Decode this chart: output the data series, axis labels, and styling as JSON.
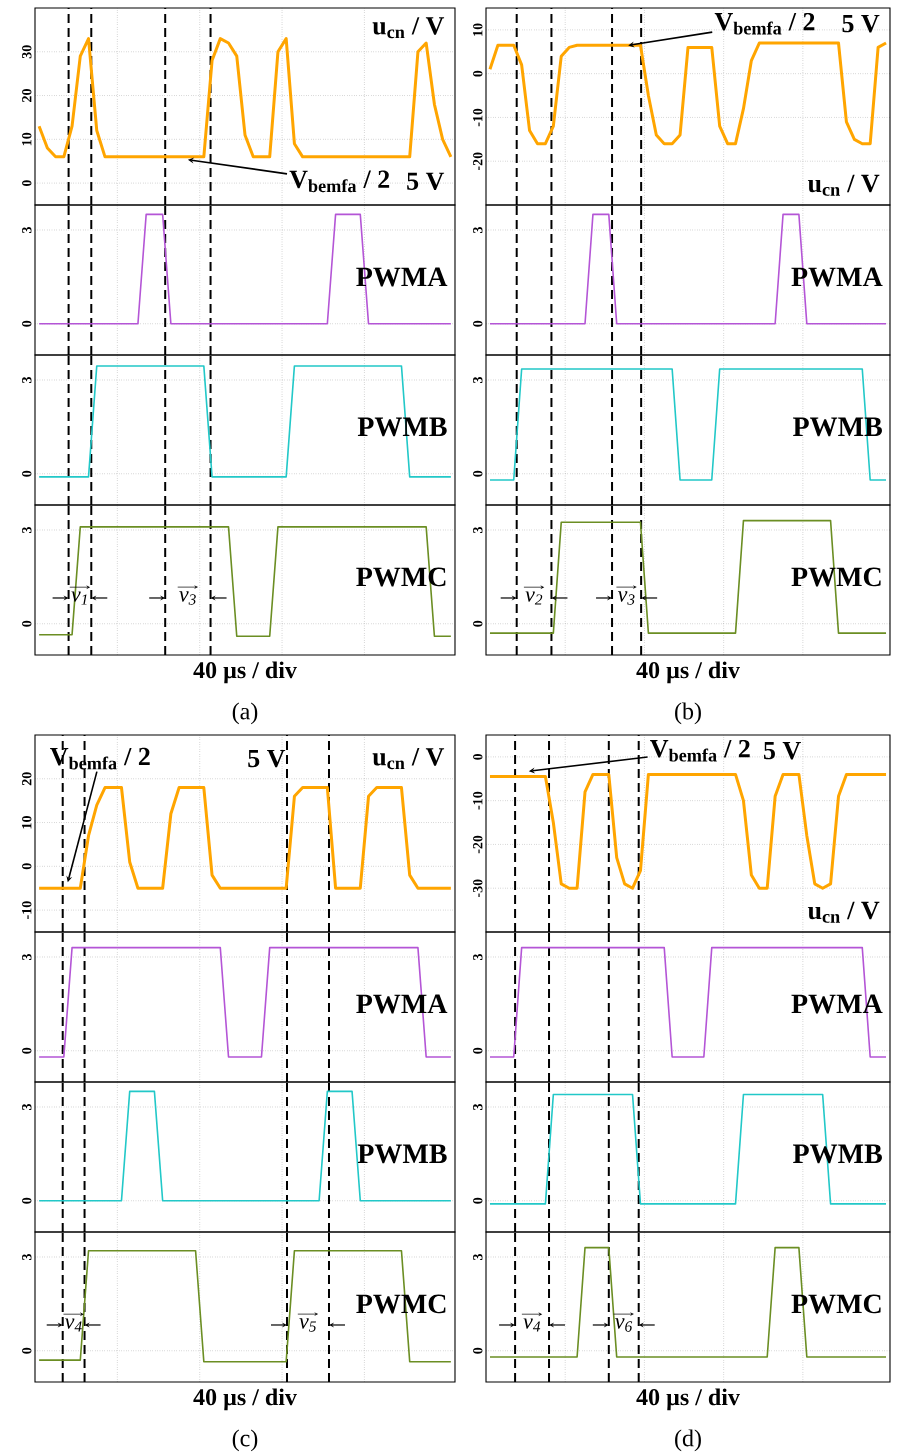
{
  "chart_data": [
    {
      "type": "line",
      "categories": [
        null,
        null,
        null,
        null,
        null,
        null,
        null,
        null,
        null,
        null,
        null,
        null,
        null,
        null,
        null,
        null,
        null,
        null,
        null,
        null,
        null,
        null,
        null,
        null,
        null,
        null,
        null,
        null,
        null,
        null,
        null,
        null,
        null,
        null,
        null,
        null,
        null,
        null,
        null,
        null,
        null,
        null,
        null,
        null,
        null,
        null,
        null,
        null,
        null,
        null,
        null
      ],
      "ylim": [
        -5,
        40
      ],
      "yticks": [
        0,
        10,
        20,
        30
      ],
      "grid": true,
      "tick_labels": "y",
      "series": [
        {
          "color": "#ffa500",
          "values": [
            13,
            8,
            6,
            6,
            13,
            29,
            33,
            12,
            6,
            6,
            6,
            6,
            6,
            6,
            6,
            6,
            6,
            6,
            6,
            6,
            6,
            28,
            33,
            32,
            29,
            11,
            6,
            6,
            6,
            30,
            33,
            9,
            6,
            6,
            6,
            6,
            6,
            6,
            6,
            6,
            6,
            6,
            6,
            6,
            6,
            6,
            30,
            32,
            18,
            10,
            6
          ]
        }
      ],
      "annotations": [
        "u$_{cn}$ / V",
        "V$_{bemfa}$ / 2",
        "5 V"
      ]
    },
    {
      "type": "line",
      "categories": [
        null,
        null,
        null,
        null,
        null,
        null,
        null,
        null,
        null,
        null,
        null,
        null,
        null,
        null,
        null,
        null,
        null,
        null,
        null,
        null,
        null,
        null,
        null,
        null,
        null,
        null,
        null,
        null,
        null,
        null,
        null,
        null,
        null,
        null,
        null,
        null,
        null,
        null,
        null,
        null,
        null,
        null,
        null,
        null,
        null,
        null,
        null,
        null,
        null,
        null,
        null
      ],
      "ylim": [
        -1,
        3.8
      ],
      "yticks": [
        0,
        3
      ],
      "grid": true,
      "tick_labels": "y",
      "series": [
        {
          "name": "PWMA",
          "color": "#b455d6",
          "values": [
            0,
            0,
            0,
            0,
            0,
            0,
            0,
            0,
            0,
            0,
            0,
            0,
            0,
            3.5,
            3.5,
            3.5,
            0,
            0,
            0,
            0,
            0,
            0,
            0,
            0,
            0,
            0,
            0,
            0,
            0,
            0,
            0,
            0,
            0,
            0,
            0,
            0,
            3.5,
            3.5,
            3.5,
            3.5,
            0,
            0,
            0,
            0,
            0,
            0,
            0,
            0,
            0,
            0,
            0
          ]
        }
      ]
    },
    {
      "type": "line",
      "categories": [
        null,
        null,
        null,
        null,
        null,
        null,
        null,
        null,
        null,
        null,
        null,
        null,
        null,
        null,
        null,
        null,
        null,
        null,
        null,
        null,
        null,
        null,
        null,
        null,
        null,
        null,
        null,
        null,
        null,
        null,
        null,
        null,
        null,
        null,
        null,
        null,
        null,
        null,
        null,
        null,
        null,
        null,
        null,
        null,
        null,
        null,
        null,
        null,
        null,
        null,
        null
      ],
      "ylim": [
        -1,
        3.8
      ],
      "yticks": [
        0,
        3
      ],
      "grid": true,
      "tick_labels": "y",
      "series": [
        {
          "name": "PWMB",
          "color": "#22c8c8",
          "values": [
            -0.1,
            -0.1,
            -0.1,
            -0.1,
            -0.1,
            -0.1,
            -0.1,
            3.45,
            3.45,
            3.45,
            3.45,
            3.45,
            3.45,
            3.45,
            3.45,
            3.45,
            3.45,
            3.45,
            3.45,
            3.45,
            3.45,
            -0.1,
            -0.1,
            -0.1,
            -0.1,
            -0.1,
            -0.1,
            -0.1,
            -0.1,
            -0.1,
            -0.1,
            3.45,
            3.45,
            3.45,
            3.45,
            3.45,
            3.45,
            3.45,
            3.45,
            3.45,
            3.45,
            3.45,
            3.45,
            3.45,
            3.45,
            -0.1,
            -0.1,
            -0.1,
            -0.1,
            -0.1,
            -0.1
          ]
        }
      ]
    },
    {
      "type": "line",
      "categories": [
        null,
        null,
        null,
        null,
        null,
        null,
        null,
        null,
        null,
        null,
        null,
        null,
        null,
        null,
        null,
        null,
        null,
        null,
        null,
        null,
        null,
        null,
        null,
        null,
        null,
        null,
        null,
        null,
        null,
        null,
        null,
        null,
        null,
        null,
        null,
        null,
        null,
        null,
        null,
        null,
        null,
        null,
        null,
        null,
        null,
        null,
        null,
        null,
        null,
        null,
        null
      ],
      "ylim": [
        -1,
        3.8
      ],
      "yticks": [
        0,
        3
      ],
      "grid": true,
      "tick_labels": "y",
      "xlabel": "40 µs / div",
      "series": [
        {
          "name": "PWMC",
          "color": "#6b8e23",
          "values": [
            -0.35,
            -0.35,
            -0.35,
            -0.35,
            -0.35,
            3.1,
            3.1,
            3.1,
            3.1,
            3.1,
            3.1,
            3.1,
            3.1,
            3.1,
            3.1,
            3.1,
            3.1,
            3.1,
            3.1,
            3.1,
            3.1,
            3.1,
            3.1,
            3.1,
            -0.4,
            -0.4,
            -0.4,
            -0.4,
            -0.4,
            3.1,
            3.1,
            3.1,
            3.1,
            3.1,
            3.1,
            3.1,
            3.1,
            3.1,
            3.1,
            3.1,
            3.1,
            3.1,
            3.1,
            3.1,
            3.1,
            3.1,
            3.1,
            3.1,
            -0.4,
            -0.4,
            -0.4
          ]
        }
      ],
      "annotations": [
        "v$_{1}$",
        "v$_{3}$",
        "(a)"
      ]
    },
    {
      "type": "line",
      "categories": [
        null,
        null,
        null,
        null,
        null,
        null,
        null,
        null,
        null,
        null,
        null,
        null,
        null,
        null,
        null,
        null,
        null,
        null,
        null,
        null,
        null,
        null,
        null,
        null,
        null,
        null,
        null,
        null,
        null,
        null,
        null,
        null,
        null,
        null,
        null,
        null,
        null,
        null,
        null,
        null,
        null,
        null,
        null,
        null,
        null,
        null,
        null,
        null,
        null,
        null,
        null
      ],
      "ylim": [
        -30,
        15
      ],
      "yticks": [
        -20,
        -10,
        0,
        10
      ],
      "grid": true,
      "tick_labels": "y",
      "series": [
        {
          "color": "#ffa500",
          "values": [
            1,
            6.5,
            6.5,
            6.5,
            2,
            -13,
            -16,
            -16,
            -12,
            4,
            6,
            6.5,
            6.5,
            6.5,
            6.5,
            6.5,
            6.5,
            6.5,
            6.5,
            6.5,
            -5,
            -14,
            -16,
            -16,
            -14,
            6,
            6,
            6,
            6,
            -12,
            -16,
            -16,
            -8,
            3,
            7,
            7,
            7,
            7,
            7,
            7,
            7,
            7,
            7,
            7,
            7,
            -11,
            -15,
            -16,
            -16,
            6,
            7
          ]
        }
      ],
      "annotations": [
        "u$_{cn}$ / V",
        "V$_{bemfa}$ / 2",
        "5 V"
      ]
    },
    {
      "type": "line",
      "categories": [
        null,
        null,
        null,
        null,
        null,
        null,
        null,
        null,
        null,
        null,
        null,
        null,
        null,
        null,
        null,
        null,
        null,
        null,
        null,
        null,
        null,
        null,
        null,
        null,
        null,
        null,
        null,
        null,
        null,
        null,
        null,
        null,
        null,
        null,
        null,
        null,
        null,
        null,
        null,
        null,
        null,
        null,
        null,
        null,
        null,
        null,
        null,
        null,
        null,
        null,
        null
      ],
      "ylim": [
        -1,
        3.8
      ],
      "yticks": [
        0,
        3
      ],
      "grid": true,
      "tick_labels": "y",
      "series": [
        {
          "name": "PWMA",
          "color": "#b455d6",
          "values": [
            0,
            0,
            0,
            0,
            0,
            0,
            0,
            0,
            0,
            0,
            0,
            0,
            0,
            3.5,
            3.5,
            3.5,
            0,
            0,
            0,
            0,
            0,
            0,
            0,
            0,
            0,
            0,
            0,
            0,
            0,
            0,
            0,
            0,
            0,
            0,
            0,
            0,
            0,
            3.5,
            3.5,
            3.5,
            0,
            0,
            0,
            0,
            0,
            0,
            0,
            0,
            0,
            0,
            0
          ]
        }
      ]
    },
    {
      "type": "line",
      "categories": [
        null,
        null,
        null,
        null,
        null,
        null,
        null,
        null,
        null,
        null,
        null,
        null,
        null,
        null,
        null,
        null,
        null,
        null,
        null,
        null,
        null,
        null,
        null,
        null,
        null,
        null,
        null,
        null,
        null,
        null,
        null,
        null,
        null,
        null,
        null,
        null,
        null,
        null,
        null,
        null,
        null,
        null,
        null,
        null,
        null,
        null,
        null,
        null,
        null,
        null,
        null
      ],
      "ylim": [
        -1,
        3.8
      ],
      "yticks": [
        0,
        3
      ],
      "grid": true,
      "tick_labels": "y",
      "series": [
        {
          "name": "PWMB",
          "color": "#22c8c8",
          "values": [
            -0.2,
            -0.2,
            -0.2,
            -0.2,
            3.35,
            3.35,
            3.35,
            3.35,
            3.35,
            3.35,
            3.35,
            3.35,
            3.35,
            3.35,
            3.35,
            3.35,
            3.35,
            3.35,
            3.35,
            3.35,
            3.35,
            3.35,
            3.35,
            3.35,
            -0.2,
            -0.2,
            -0.2,
            -0.2,
            -0.2,
            3.35,
            3.35,
            3.35,
            3.35,
            3.35,
            3.35,
            3.35,
            3.35,
            3.35,
            3.35,
            3.35,
            3.35,
            3.35,
            3.35,
            3.35,
            3.35,
            3.35,
            3.35,
            3.35,
            -0.2,
            -0.2,
            -0.2
          ]
        }
      ]
    },
    {
      "type": "line",
      "categories": [
        null,
        null,
        null,
        null,
        null,
        null,
        null,
        null,
        null,
        null,
        null,
        null,
        null,
        null,
        null,
        null,
        null,
        null,
        null,
        null,
        null,
        null,
        null,
        null,
        null,
        null,
        null,
        null,
        null,
        null,
        null,
        null,
        null,
        null,
        null,
        null,
        null,
        null,
        null,
        null,
        null,
        null,
        null,
        null,
        null,
        null,
        null,
        null,
        null,
        null,
        null
      ],
      "ylim": [
        -1,
        3.8
      ],
      "yticks": [
        0,
        3
      ],
      "grid": true,
      "tick_labels": "y",
      "xlabel": "40 µs / div",
      "series": [
        {
          "name": "PWMC",
          "color": "#6b8e23",
          "values": [
            -0.3,
            -0.3,
            -0.3,
            -0.3,
            -0.3,
            -0.3,
            -0.3,
            -0.3,
            -0.3,
            3.25,
            3.25,
            3.25,
            3.25,
            3.25,
            3.25,
            3.25,
            3.25,
            3.25,
            3.25,
            3.25,
            -0.3,
            -0.3,
            -0.3,
            -0.3,
            -0.3,
            -0.3,
            -0.3,
            -0.3,
            -0.3,
            -0.3,
            -0.3,
            -0.3,
            3.3,
            3.3,
            3.3,
            3.3,
            3.3,
            3.3,
            3.3,
            3.3,
            3.3,
            3.3,
            3.3,
            3.3,
            -0.3,
            -0.3,
            -0.3,
            -0.3,
            -0.3,
            -0.3,
            -0.3
          ]
        }
      ],
      "annotations": [
        "v$_{2}$",
        "v$_{3}$",
        "(b)"
      ]
    },
    {
      "type": "line",
      "categories": [
        null,
        null,
        null,
        null,
        null,
        null,
        null,
        null,
        null,
        null,
        null,
        null,
        null,
        null,
        null,
        null,
        null,
        null,
        null,
        null,
        null,
        null,
        null,
        null,
        null,
        null,
        null,
        null,
        null,
        null,
        null,
        null,
        null,
        null,
        null,
        null,
        null,
        null,
        null,
        null,
        null,
        null,
        null,
        null,
        null,
        null,
        null,
        null,
        null,
        null,
        null
      ],
      "ylim": [
        -15,
        30
      ],
      "yticks": [
        -10,
        0,
        10,
        20
      ],
      "grid": true,
      "tick_labels": "y",
      "series": [
        {
          "color": "#ffa500",
          "values": [
            -5,
            -5,
            -5,
            -5,
            -5,
            -5,
            7,
            14,
            18,
            18,
            18,
            1,
            -5,
            -5,
            -5,
            -5,
            12,
            18,
            18,
            18,
            18,
            -2,
            -5,
            -5,
            -5,
            -5,
            -5,
            -5,
            -5,
            -5,
            -5,
            16,
            18,
            18,
            18,
            18,
            -5,
            -5,
            -5,
            -5,
            16,
            18,
            18,
            18,
            18,
            -2,
            -5,
            -5,
            -5,
            -5,
            -5
          ]
        }
      ],
      "annotations": [
        "u$_{cn}$ / V",
        "V$_{bemfa}$ / 2",
        "5 V"
      ]
    },
    {
      "type": "line",
      "categories": [
        null,
        null,
        null,
        null,
        null,
        null,
        null,
        null,
        null,
        null,
        null,
        null,
        null,
        null,
        null,
        null,
        null,
        null,
        null,
        null,
        null,
        null,
        null,
        null,
        null,
        null,
        null,
        null,
        null,
        null,
        null,
        null,
        null,
        null,
        null,
        null,
        null,
        null,
        null,
        null,
        null,
        null,
        null,
        null,
        null,
        null,
        null,
        null,
        null,
        null,
        null
      ],
      "ylim": [
        -1,
        3.8
      ],
      "yticks": [
        0,
        3
      ],
      "grid": true,
      "tick_labels": "y",
      "series": [
        {
          "name": "PWMA",
          "color": "#b455d6",
          "values": [
            -0.2,
            -0.2,
            -0.2,
            -0.2,
            3.3,
            3.3,
            3.3,
            3.3,
            3.3,
            3.3,
            3.3,
            3.3,
            3.3,
            3.3,
            3.3,
            3.3,
            3.3,
            3.3,
            3.3,
            3.3,
            3.3,
            3.3,
            3.3,
            -0.2,
            -0.2,
            -0.2,
            -0.2,
            -0.2,
            3.3,
            3.3,
            3.3,
            3.3,
            3.3,
            3.3,
            3.3,
            3.3,
            3.3,
            3.3,
            3.3,
            3.3,
            3.3,
            3.3,
            3.3,
            3.3,
            3.3,
            3.3,
            3.3,
            -0.2,
            -0.2,
            -0.2,
            -0.2
          ]
        }
      ]
    },
    {
      "type": "line",
      "categories": [
        null,
        null,
        null,
        null,
        null,
        null,
        null,
        null,
        null,
        null,
        null,
        null,
        null,
        null,
        null,
        null,
        null,
        null,
        null,
        null,
        null,
        null,
        null,
        null,
        null,
        null,
        null,
        null,
        null,
        null,
        null,
        null,
        null,
        null,
        null,
        null,
        null,
        null,
        null,
        null,
        null,
        null,
        null,
        null,
        null,
        null,
        null,
        null,
        null,
        null,
        null
      ],
      "ylim": [
        -1,
        3.8
      ],
      "yticks": [
        0,
        3
      ],
      "grid": true,
      "tick_labels": "y",
      "series": [
        {
          "name": "PWMB",
          "color": "#22c8c8",
          "values": [
            0,
            0,
            0,
            0,
            0,
            0,
            0,
            0,
            0,
            0,
            0,
            3.5,
            3.5,
            3.5,
            3.5,
            0,
            0,
            0,
            0,
            0,
            0,
            0,
            0,
            0,
            0,
            0,
            0,
            0,
            0,
            0,
            0,
            0,
            0,
            0,
            0,
            3.5,
            3.5,
            3.5,
            3.5,
            0,
            0,
            0,
            0,
            0,
            0,
            0,
            0,
            0,
            0,
            0,
            0
          ]
        }
      ]
    },
    {
      "type": "line",
      "categories": [
        null,
        null,
        null,
        null,
        null,
        null,
        null,
        null,
        null,
        null,
        null,
        null,
        null,
        null,
        null,
        null,
        null,
        null,
        null,
        null,
        null,
        null,
        null,
        null,
        null,
        null,
        null,
        null,
        null,
        null,
        null,
        null,
        null,
        null,
        null,
        null,
        null,
        null,
        null,
        null,
        null,
        null,
        null,
        null,
        null,
        null,
        null,
        null,
        null,
        null,
        null
      ],
      "ylim": [
        -1,
        3.8
      ],
      "yticks": [
        0,
        3
      ],
      "grid": true,
      "tick_labels": "y",
      "xlabel": "40 µs / div",
      "series": [
        {
          "name": "PWMC",
          "color": "#6b8e23",
          "values": [
            -0.3,
            -0.3,
            -0.3,
            -0.3,
            -0.3,
            -0.3,
            3.2,
            3.2,
            3.2,
            3.2,
            3.2,
            3.2,
            3.2,
            3.2,
            3.2,
            3.2,
            3.2,
            3.2,
            3.2,
            3.2,
            -0.35,
            -0.35,
            -0.35,
            -0.35,
            -0.35,
            -0.35,
            -0.35,
            -0.35,
            -0.35,
            -0.35,
            -0.35,
            3.2,
            3.2,
            3.2,
            3.2,
            3.2,
            3.2,
            3.2,
            3.2,
            3.2,
            3.2,
            3.2,
            3.2,
            3.2,
            3.2,
            -0.35,
            -0.35,
            -0.35,
            -0.35,
            -0.35,
            -0.35
          ]
        }
      ],
      "annotations": [
        "v$_{4}$",
        "v$_{5}$",
        "(c)"
      ]
    },
    {
      "type": "line",
      "categories": [
        null,
        null,
        null,
        null,
        null,
        null,
        null,
        null,
        null,
        null,
        null,
        null,
        null,
        null,
        null,
        null,
        null,
        null,
        null,
        null,
        null,
        null,
        null,
        null,
        null,
        null,
        null,
        null,
        null,
        null,
        null,
        null,
        null,
        null,
        null,
        null,
        null,
        null,
        null,
        null,
        null,
        null,
        null,
        null,
        null,
        null,
        null,
        null,
        null,
        null,
        null
      ],
      "ylim": [
        -40,
        5
      ],
      "yticks": [
        -30,
        -20,
        -10,
        0
      ],
      "grid": true,
      "tick_labels": "y",
      "series": [
        {
          "color": "#ffa500",
          "values": [
            -4.5,
            -4.5,
            -4.5,
            -4.5,
            -4.5,
            -4.5,
            -4.5,
            -4.5,
            -15,
            -29,
            -30,
            -30,
            -8,
            -4,
            -4,
            -4,
            -23,
            -29,
            -30,
            -26,
            -4,
            -4,
            -4,
            -4,
            -4,
            -4,
            -4,
            -4,
            -4,
            -4,
            -4,
            -4,
            -10,
            -27,
            -30,
            -30,
            -9,
            -4,
            -4,
            -4,
            -18,
            -29,
            -30,
            -29,
            -9,
            -4,
            -4,
            -4,
            -4,
            -4,
            -4
          ]
        }
      ],
      "annotations": [
        "u$_{cn}$ / V",
        "V$_{bemfa}$ / 2",
        "5 V"
      ]
    },
    {
      "type": "line",
      "categories": [
        null,
        null,
        null,
        null,
        null,
        null,
        null,
        null,
        null,
        null,
        null,
        null,
        null,
        null,
        null,
        null,
        null,
        null,
        null,
        null,
        null,
        null,
        null,
        null,
        null,
        null,
        null,
        null,
        null,
        null,
        null,
        null,
        null,
        null,
        null,
        null,
        null,
        null,
        null,
        null,
        null,
        null,
        null,
        null,
        null,
        null,
        null,
        null,
        null,
        null,
        null
      ],
      "ylim": [
        -1,
        3.8
      ],
      "yticks": [
        0,
        3
      ],
      "grid": true,
      "tick_labels": "y",
      "series": [
        {
          "name": "PWMA",
          "color": "#b455d6",
          "values": [
            -0.2,
            -0.2,
            -0.2,
            -0.2,
            3.3,
            3.3,
            3.3,
            3.3,
            3.3,
            3.3,
            3.3,
            3.3,
            3.3,
            3.3,
            3.3,
            3.3,
            3.3,
            3.3,
            3.3,
            3.3,
            3.3,
            3.3,
            3.3,
            -0.2,
            -0.2,
            -0.2,
            -0.2,
            -0.2,
            3.3,
            3.3,
            3.3,
            3.3,
            3.3,
            3.3,
            3.3,
            3.3,
            3.3,
            3.3,
            3.3,
            3.3,
            3.3,
            3.3,
            3.3,
            3.3,
            3.3,
            3.3,
            3.3,
            3.3,
            -0.2,
            -0.2,
            -0.2
          ]
        }
      ]
    },
    {
      "type": "line",
      "categories": [
        null,
        null,
        null,
        null,
        null,
        null,
        null,
        null,
        null,
        null,
        null,
        null,
        null,
        null,
        null,
        null,
        null,
        null,
        null,
        null,
        null,
        null,
        null,
        null,
        null,
        null,
        null,
        null,
        null,
        null,
        null,
        null,
        null,
        null,
        null,
        null,
        null,
        null,
        null,
        null,
        null,
        null,
        null,
        null,
        null,
        null,
        null,
        null,
        null,
        null,
        null
      ],
      "ylim": [
        -1,
        3.8
      ],
      "yticks": [
        0,
        3
      ],
      "grid": true,
      "tick_labels": "y",
      "series": [
        {
          "name": "PWMB",
          "color": "#22c8c8",
          "values": [
            -0.1,
            -0.1,
            -0.1,
            -0.1,
            -0.1,
            -0.1,
            -0.1,
            -0.1,
            3.4,
            3.4,
            3.4,
            3.4,
            3.4,
            3.4,
            3.4,
            3.4,
            3.4,
            3.4,
            3.4,
            -0.1,
            -0.1,
            -0.1,
            -0.1,
            -0.1,
            -0.1,
            -0.1,
            -0.1,
            -0.1,
            -0.1,
            -0.1,
            -0.1,
            -0.1,
            3.4,
            3.4,
            3.4,
            3.4,
            3.4,
            3.4,
            3.4,
            3.4,
            3.4,
            3.4,
            3.4,
            -0.1,
            -0.1,
            -0.1,
            -0.1,
            -0.1,
            -0.1,
            -0.1,
            -0.1
          ]
        }
      ]
    },
    {
      "type": "line",
      "categories": [
        null,
        null,
        null,
        null,
        null,
        null,
        null,
        null,
        null,
        null,
        null,
        null,
        null,
        null,
        null,
        null,
        null,
        null,
        null,
        null,
        null,
        null,
        null,
        null,
        null,
        null,
        null,
        null,
        null,
        null,
        null,
        null,
        null,
        null,
        null,
        null,
        null,
        null,
        null,
        null,
        null,
        null,
        null,
        null,
        null,
        null,
        null,
        null,
        null,
        null,
        null
      ],
      "ylim": [
        -1,
        3.8
      ],
      "yticks": [
        0,
        3
      ],
      "grid": true,
      "tick_labels": "y",
      "xlabel": "40 µs / div",
      "series": [
        {
          "name": "PWMC",
          "color": "#6b8e23",
          "values": [
            -0.2,
            -0.2,
            -0.2,
            -0.2,
            -0.2,
            -0.2,
            -0.2,
            -0.2,
            -0.2,
            -0.2,
            -0.2,
            -0.2,
            3.3,
            3.3,
            3.3,
            3.3,
            -0.2,
            -0.2,
            -0.2,
            -0.2,
            -0.2,
            -0.2,
            -0.2,
            -0.2,
            -0.2,
            -0.2,
            -0.2,
            -0.2,
            -0.2,
            -0.2,
            -0.2,
            -0.2,
            -0.2,
            -0.2,
            -0.2,
            -0.2,
            3.3,
            3.3,
            3.3,
            3.3,
            -0.2,
            -0.2,
            -0.2,
            -0.2,
            -0.2,
            -0.2,
            -0.2,
            -0.2,
            -0.2,
            -0.2,
            -0.2
          ]
        }
      ],
      "annotations": [
        "v$_{4}$",
        "v$_{6}$",
        "(d)"
      ]
    }
  ]
}
